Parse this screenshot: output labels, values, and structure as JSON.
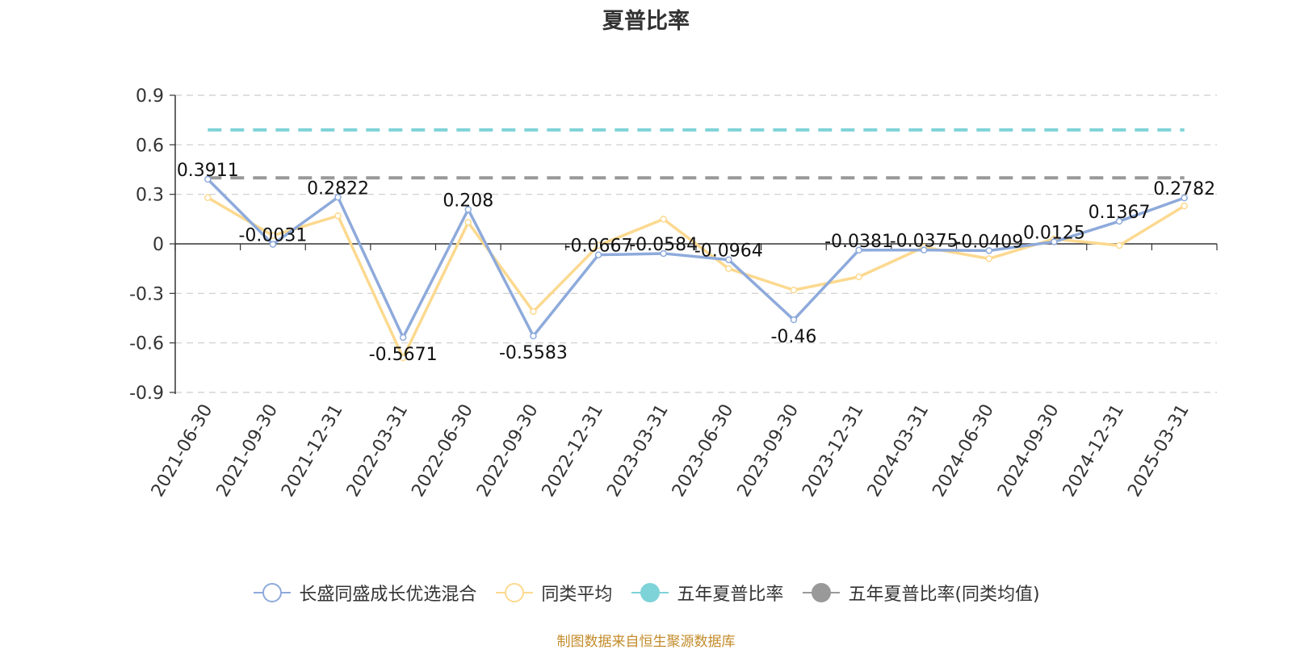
{
  "chart_data": {
    "type": "line",
    "title": "夏普比率",
    "x": [
      "2021-06-30",
      "2021-09-30",
      "2021-12-31",
      "2022-03-31",
      "2022-06-30",
      "2022-09-30",
      "2022-12-31",
      "2023-03-31",
      "2023-06-30",
      "2023-09-30",
      "2023-12-31",
      "2024-03-31",
      "2024-06-30",
      "2024-09-30",
      "2024-12-31",
      "2025-03-31"
    ],
    "ylim": [
      -0.9,
      0.9
    ],
    "yticks": [
      "0.9",
      "0.6",
      "0.3",
      "0",
      "-0.3",
      "-0.6",
      "-0.9"
    ],
    "grid": true,
    "legend_position": "bottom",
    "series": [
      {
        "name": "长盛同盛成长优选混合",
        "color": "#8eaadb",
        "values": [
          0.3911,
          -0.0031,
          0.2822,
          -0.5671,
          0.208,
          -0.5583,
          -0.0667,
          -0.0584,
          -0.0964,
          -0.46,
          -0.0381,
          -0.0375,
          -0.0409,
          0.0125,
          0.1367,
          0.2782
        ],
        "labels": [
          "0.3911",
          "-0.0031",
          "0.2822",
          "-0.5671",
          "0.208",
          "-0.5583",
          "-0.0667",
          "-0.0584",
          "-0.0964",
          "-0.46",
          "-0.0381",
          "-0.0375",
          "-0.0409",
          "0.0125",
          "0.1367",
          "0.2782"
        ]
      },
      {
        "name": "同类平均",
        "color": "#fcd98f",
        "values": [
          0.28,
          0.05,
          0.17,
          -0.69,
          0.13,
          -0.41,
          -0.01,
          0.15,
          -0.15,
          -0.28,
          -0.2,
          -0.02,
          -0.09,
          0.03,
          -0.01,
          0.23
        ]
      },
      {
        "name": "五年夏普比率",
        "color": "#7ed3d8",
        "constant": 0.69
      },
      {
        "name": "五年夏普比率(同类均值)",
        "color": "#999999",
        "constant": 0.4
      }
    ]
  },
  "footer": {
    "source": "制图数据来自恒生聚源数据库"
  }
}
